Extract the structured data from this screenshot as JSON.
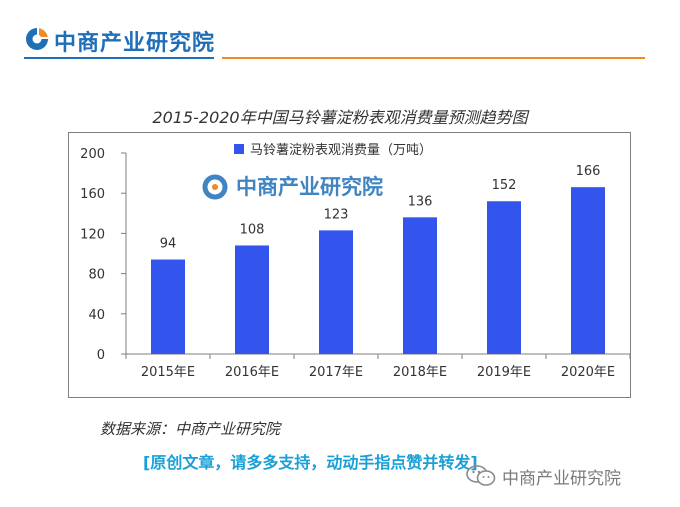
{
  "header": {
    "org_name": "中商产业研究院",
    "brand_color": "#1f6fb7",
    "accent_color": "#f08a24"
  },
  "chart_data": {
    "type": "bar",
    "title": "2015-2020年中国马铃薯淀粉表观消费量预测趋势图",
    "categories": [
      "2015年E",
      "2016年E",
      "2017年E",
      "2018年E",
      "2019年E",
      "2020年E"
    ],
    "series": [
      {
        "name": "马铃薯淀粉表观消费量（万吨）",
        "values": [
          94,
          108,
          123,
          136,
          152,
          166
        ],
        "color": "#3355ee"
      }
    ],
    "ylim": [
      0,
      200
    ],
    "yticks": [
      0,
      40,
      80,
      120,
      160,
      200
    ],
    "xlabel": "",
    "ylabel": "",
    "grid": false,
    "legend_position": "top-center",
    "data_labels": true,
    "watermark": "中商产业研究院"
  },
  "footer": {
    "source": "数据来源：中商产业研究院",
    "cta": "[原创文章，请多多支持，动动手指点赞并转发]",
    "wechat_account": "中商产业研究院",
    "cta_color": "#1a9fd6"
  }
}
